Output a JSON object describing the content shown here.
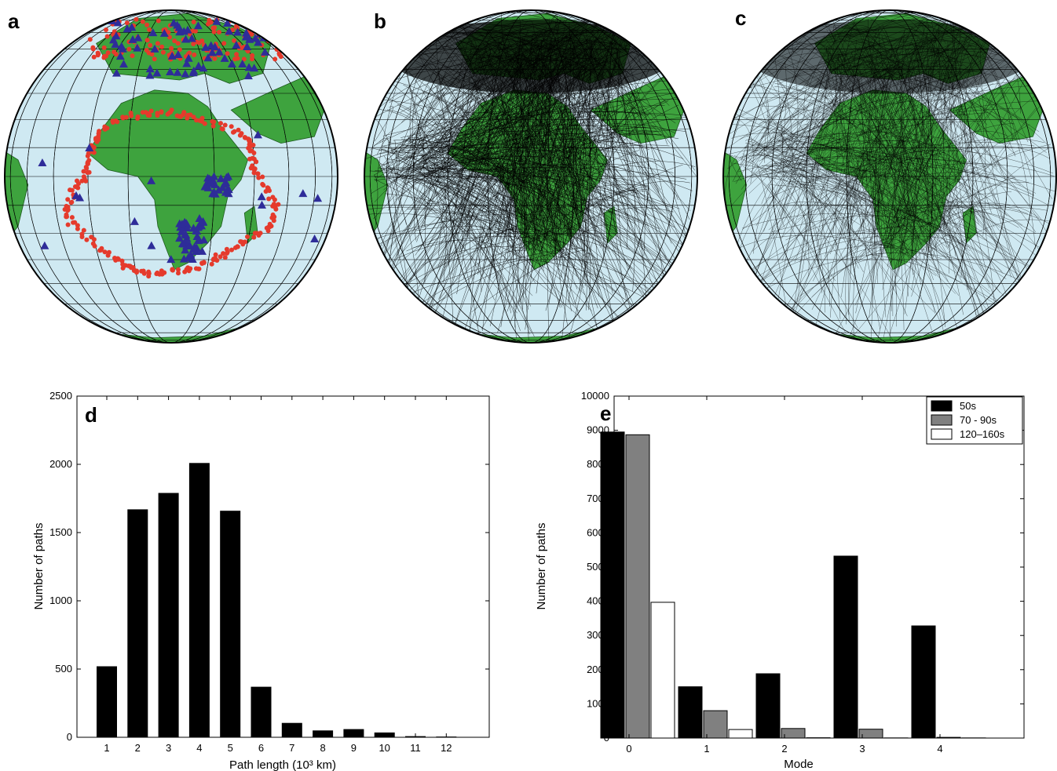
{
  "panels": {
    "a": "a",
    "b": "b",
    "c": "c",
    "d": "d",
    "e": "e"
  },
  "maps": {
    "ocean_color": "#cfe9f2",
    "land_color": "#3ea33e",
    "event_color": "#e53a2c",
    "station_color": "#2e2c99",
    "path_color": "#000000",
    "grid_color": "#000000"
  },
  "chart_data": [
    {
      "panel": "d",
      "type": "bar",
      "categories": [
        "1",
        "2",
        "3",
        "4",
        "5",
        "6",
        "7",
        "8",
        "9",
        "10",
        "11",
        "12"
      ],
      "values": [
        520,
        1670,
        1790,
        2010,
        1660,
        370,
        105,
        50,
        60,
        35,
        8,
        5
      ],
      "xlabel": "Path length (10³ km)",
      "ylabel": "Number of paths",
      "ylim": [
        0,
        2500
      ],
      "yticks": [
        0,
        500,
        1000,
        1500,
        2000,
        2500
      ],
      "bar_color": "#000000",
      "grid": false
    },
    {
      "panel": "e",
      "type": "bar",
      "categories": [
        "0",
        "1",
        "2",
        "3",
        "4"
      ],
      "series": [
        {
          "name": "50s",
          "values": [
            8950,
            1500,
            1880,
            5320,
            3280
          ],
          "color": "#000000"
        },
        {
          "name": "70 - 90s",
          "values": [
            8870,
            800,
            280,
            260,
            20
          ],
          "color": "#808080"
        },
        {
          "name": "120–160s",
          "values": [
            3970,
            250,
            10,
            5,
            5
          ],
          "color": "#ffffff"
        }
      ],
      "xlabel": "Mode",
      "ylabel": "Number of paths",
      "ylim": [
        0,
        10000
      ],
      "yticks": [
        0,
        1000,
        2000,
        3000,
        4000,
        5000,
        6000,
        7000,
        8000,
        9000,
        10000
      ],
      "legend": "top-right",
      "grid": false
    }
  ]
}
